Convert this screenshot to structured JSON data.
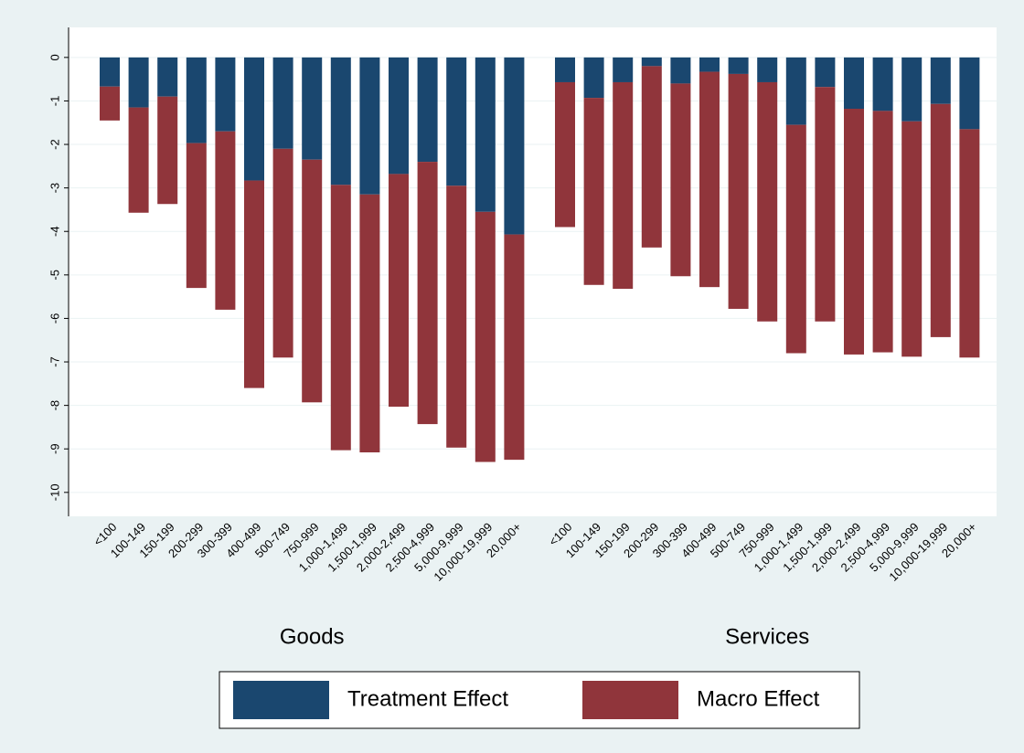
{
  "chart_data": {
    "type": "stacked-bar",
    "groups": [
      "Goods",
      "Services"
    ],
    "categories": [
      [
        "<100",
        "100-149",
        "150-199",
        "200-299",
        "300-399",
        "400-499",
        "500-749",
        "750-999",
        "1,000-1,499",
        "1,500-1,999",
        "2,000-2,499",
        "2,500-4,999",
        "5,000-9,999",
        "10,000-19,999",
        "20,000+"
      ],
      [
        "<100",
        "100-149",
        "150-199",
        "200-299",
        "300-399",
        "400-499",
        "500-749",
        "750-999",
        "1,000-1,499",
        "1,500-1,999",
        "2,000-2,499",
        "2,500-4,999",
        "5,000-9,999",
        "10,000-19,999",
        "20,000+"
      ]
    ],
    "series": [
      {
        "name": "Treatment Effect",
        "color": "#1a476f",
        "values": [
          [
            -0.67,
            -1.15,
            -0.9,
            -1.97,
            -1.7,
            -2.83,
            -2.1,
            -2.35,
            -2.93,
            -3.15,
            -2.68,
            -2.4,
            -2.95,
            -3.55,
            -4.07
          ],
          [
            -0.57,
            -0.93,
            -0.57,
            -0.2,
            -0.6,
            -0.33,
            -0.38,
            -0.57,
            -1.55,
            -0.68,
            -1.18,
            -1.23,
            -1.47,
            -1.07,
            -1.65
          ]
        ]
      },
      {
        "name": "Macro Effect",
        "color": "#90353b",
        "values": [
          [
            -0.78,
            -2.42,
            -2.47,
            -3.33,
            -4.1,
            -4.77,
            -4.8,
            -5.58,
            -6.1,
            -5.93,
            -5.35,
            -6.03,
            -6.02,
            -5.75,
            -5.18
          ],
          [
            -3.33,
            -4.3,
            -4.75,
            -4.17,
            -4.43,
            -4.95,
            -5.4,
            -5.5,
            -5.25,
            -5.39,
            -5.65,
            -5.55,
            -5.41,
            -5.36,
            -5.25
          ]
        ]
      }
    ],
    "ylim": [
      -10.55,
      0.69
    ],
    "yticks": [
      0,
      -1,
      -2,
      -3,
      -4,
      -5,
      -6,
      -7,
      -8,
      -9,
      -10
    ],
    "grid": true
  }
}
